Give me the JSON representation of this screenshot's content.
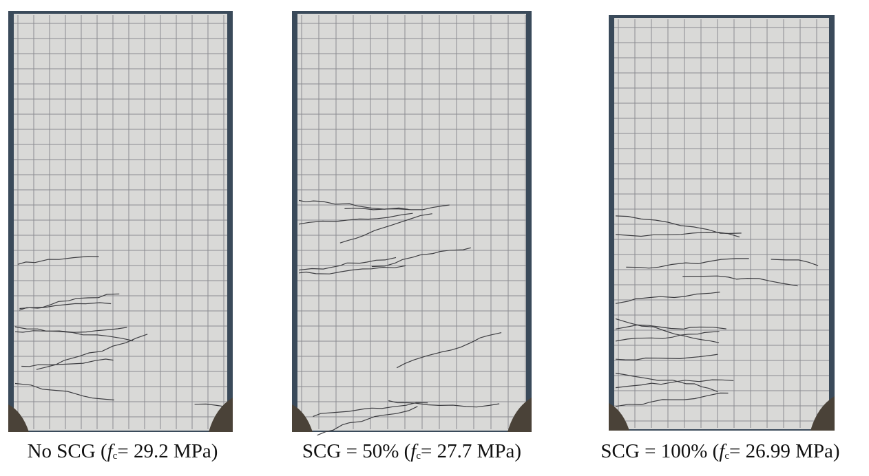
{
  "panels": [
    {
      "caption": {
        "prefix": "No SCG (",
        "symbol": "f",
        "subscript": "c",
        "suffix": "= 29.2 MPa)"
      }
    },
    {
      "caption": {
        "prefix": "SCG = 50% (",
        "symbol": "f",
        "subscript": "c",
        "suffix": "= 27.7 MPa)"
      }
    },
    {
      "caption": {
        "prefix": "SCG = 100% (",
        "symbol": "f",
        "subscript": "c",
        "suffix": "= 26.99 MPa)"
      }
    }
  ]
}
